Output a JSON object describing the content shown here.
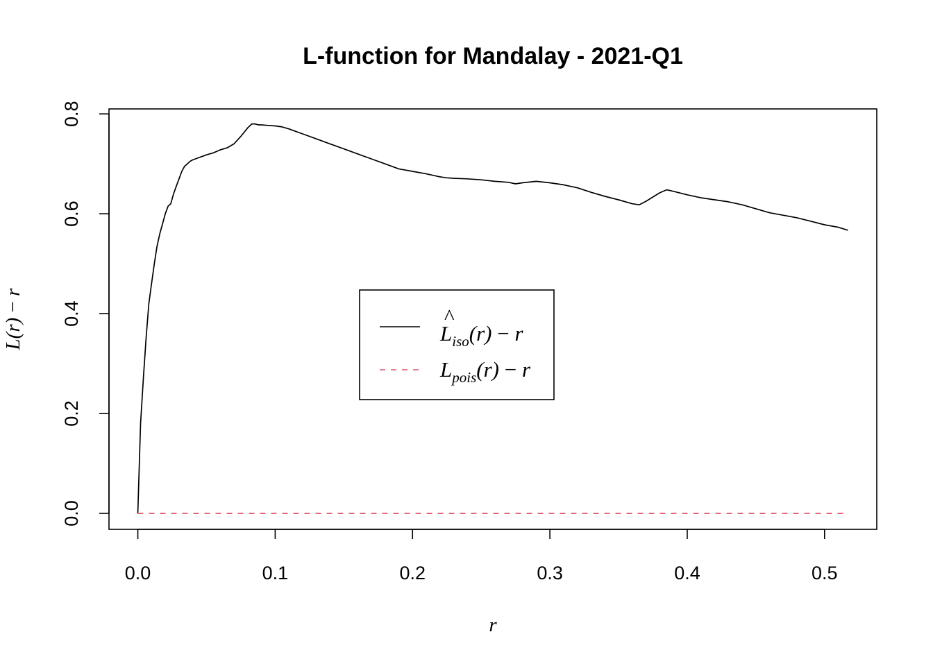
{
  "chart_data": {
    "type": "line",
    "title": "L-function for Mandalay - 2021-Q1",
    "xlabel": "r",
    "ylabel_parts": [
      "L",
      "(",
      "r",
      ")",
      " − ",
      "r"
    ],
    "xlim": [
      -0.021,
      0.538
    ],
    "ylim": [
      -0.032,
      0.81
    ],
    "xticks": [
      "0.0",
      "0.1",
      "0.2",
      "0.3",
      "0.4",
      "0.5"
    ],
    "yticks": [
      "0.0",
      "0.2",
      "0.4",
      "0.6",
      "0.8"
    ],
    "legend_position": "center",
    "legend": [
      {
        "parts": [
          "L",
          "iso",
          "(r)",
          " − ",
          "r"
        ],
        "hat": "^",
        "color": "#000000",
        "dash": "solid"
      },
      {
        "parts": [
          "L",
          "pois",
          "(r)",
          " − ",
          "r"
        ],
        "hat": "",
        "color": "#DF536B",
        "dash": "dashed"
      }
    ],
    "series": [
      {
        "name_ref": 0,
        "color": "#000000",
        "dash": "solid",
        "x": [
          0.0,
          0.002,
          0.004,
          0.006,
          0.008,
          0.01,
          0.012,
          0.014,
          0.016,
          0.018,
          0.02,
          0.022,
          0.024,
          0.026,
          0.028,
          0.03,
          0.032,
          0.034,
          0.036,
          0.038,
          0.04,
          0.042,
          0.044,
          0.046,
          0.048,
          0.05,
          0.055,
          0.06,
          0.065,
          0.07,
          0.075,
          0.08,
          0.083,
          0.085,
          0.088,
          0.09,
          0.095,
          0.1,
          0.105,
          0.11,
          0.115,
          0.12,
          0.13,
          0.14,
          0.15,
          0.16,
          0.17,
          0.18,
          0.19,
          0.2,
          0.21,
          0.22,
          0.225,
          0.23,
          0.24,
          0.25,
          0.26,
          0.27,
          0.275,
          0.28,
          0.29,
          0.3,
          0.31,
          0.32,
          0.33,
          0.34,
          0.35,
          0.36,
          0.365,
          0.37,
          0.38,
          0.385,
          0.39,
          0.4,
          0.41,
          0.42,
          0.43,
          0.44,
          0.45,
          0.46,
          0.47,
          0.48,
          0.49,
          0.5,
          0.51,
          0.517
        ],
        "y": [
          0.0,
          0.18,
          0.27,
          0.35,
          0.42,
          0.46,
          0.5,
          0.535,
          0.56,
          0.58,
          0.6,
          0.615,
          0.62,
          0.64,
          0.655,
          0.67,
          0.685,
          0.695,
          0.7,
          0.705,
          0.708,
          0.71,
          0.712,
          0.714,
          0.716,
          0.718,
          0.722,
          0.728,
          0.732,
          0.74,
          0.755,
          0.772,
          0.78,
          0.78,
          0.778,
          0.778,
          0.777,
          0.776,
          0.774,
          0.77,
          0.765,
          0.76,
          0.75,
          0.74,
          0.73,
          0.72,
          0.71,
          0.7,
          0.69,
          0.685,
          0.68,
          0.674,
          0.672,
          0.671,
          0.67,
          0.668,
          0.665,
          0.663,
          0.66,
          0.662,
          0.665,
          0.662,
          0.658,
          0.652,
          0.643,
          0.635,
          0.628,
          0.62,
          0.618,
          0.625,
          0.642,
          0.648,
          0.645,
          0.638,
          0.632,
          0.628,
          0.624,
          0.618,
          0.61,
          0.602,
          0.597,
          0.592,
          0.585,
          0.578,
          0.573,
          0.567
        ]
      },
      {
        "name_ref": 1,
        "color": "#DF536B",
        "dash": "dashed",
        "x": [
          0.0,
          0.517
        ],
        "y": [
          0.0,
          0.0
        ]
      }
    ]
  }
}
